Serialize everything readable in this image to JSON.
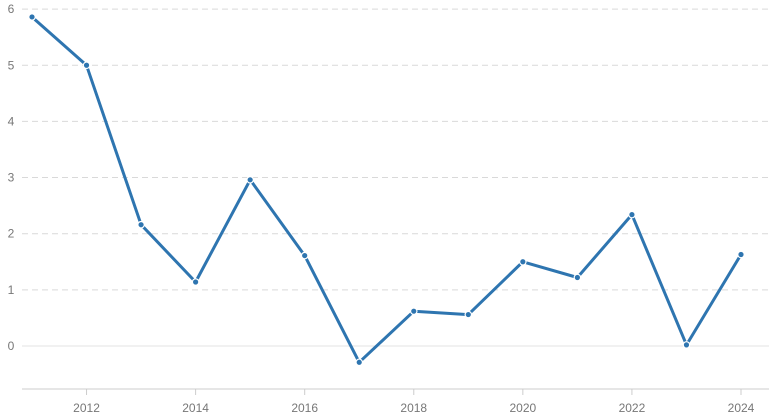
{
  "chart_data": {
    "type": "line",
    "title": "",
    "xlabel": "",
    "ylabel": "",
    "x": [
      2011,
      2012,
      2013,
      2014,
      2015,
      2016,
      2017,
      2018,
      2019,
      2020,
      2021,
      2022,
      2023,
      2024
    ],
    "series": [
      {
        "values": [
          5.86,
          5.0,
          2.16,
          1.14,
          2.96,
          1.61,
          -0.29,
          0.62,
          0.56,
          1.5,
          1.22,
          2.34,
          0.02,
          1.63
        ]
      }
    ],
    "xticks": [
      "2012",
      "2014",
      "2016",
      "2018",
      "2020",
      "2022",
      "2024"
    ],
    "yticks": [
      "0",
      "1",
      "2",
      "3",
      "4",
      "5",
      "6"
    ],
    "xlim": [
      2011,
      2024
    ],
    "ylim": [
      -0.55,
      6.1
    ],
    "grid": "horizontal dashed",
    "legend": "none",
    "colors": {
      "line": "#2e75b0",
      "grid": "#d9d9d9",
      "axis": "#cccccc",
      "tick": "#777777"
    }
  }
}
